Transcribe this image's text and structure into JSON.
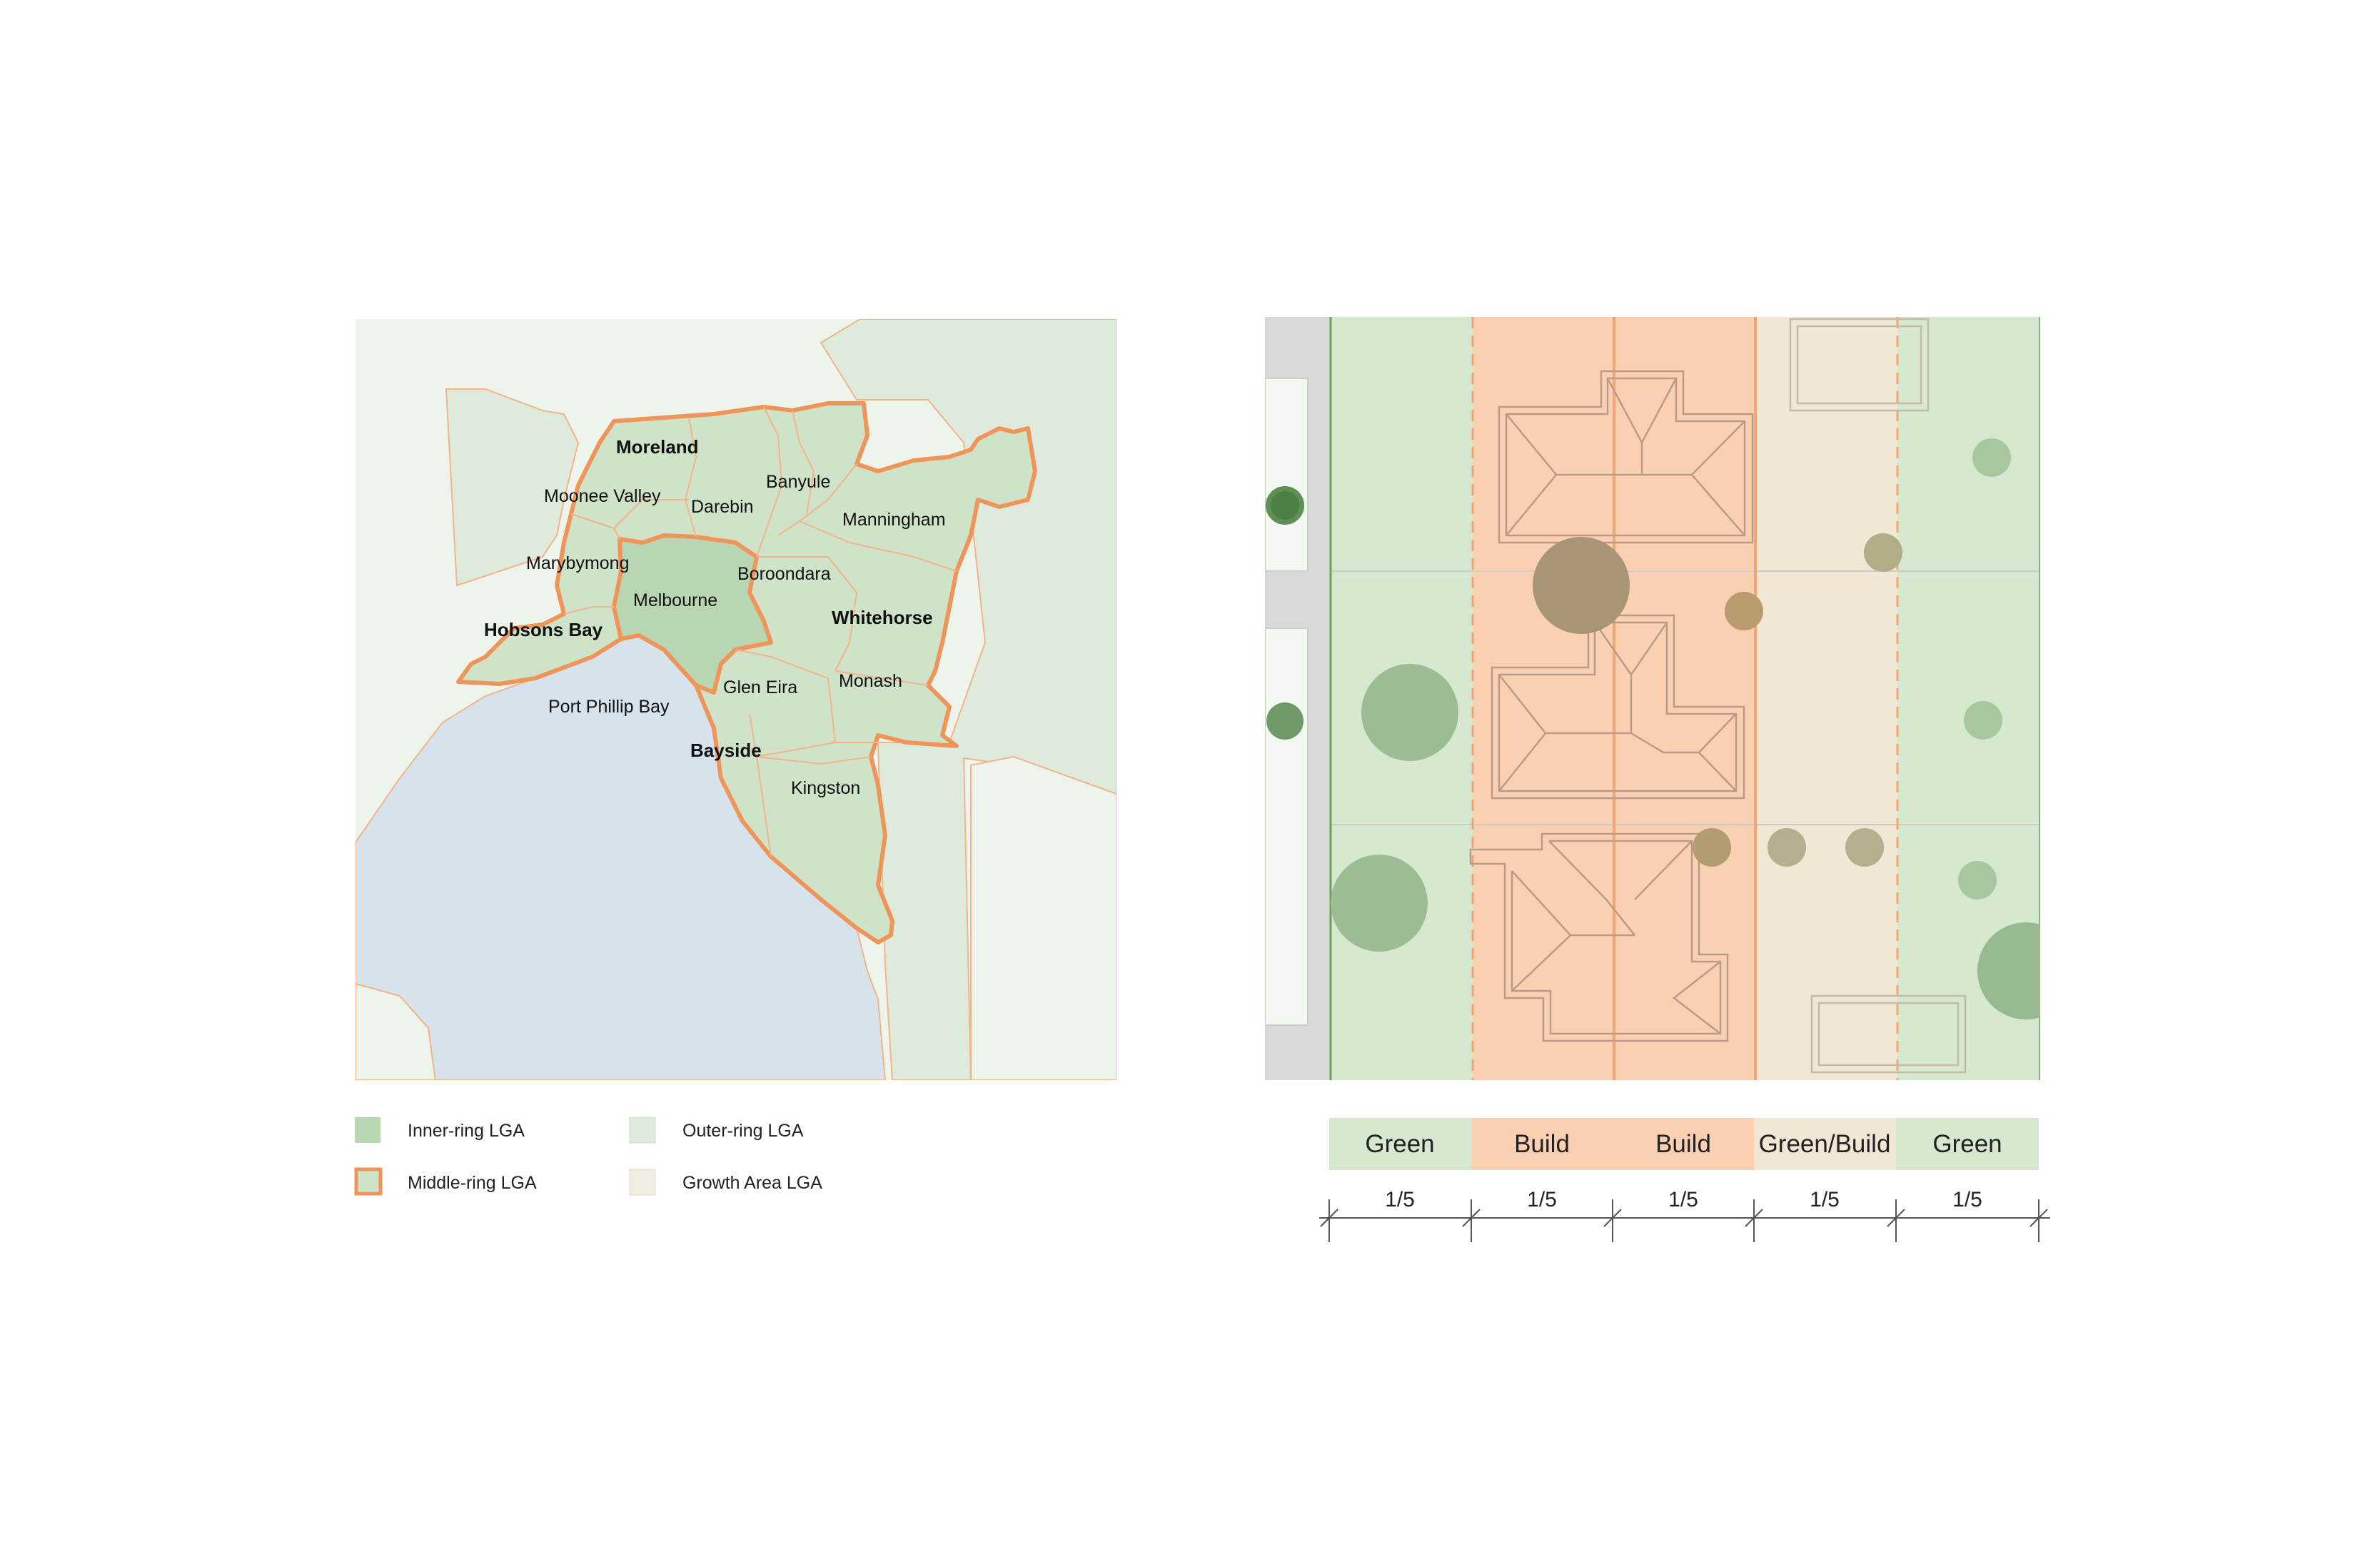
{
  "map": {
    "labels": {
      "moreland": "Moreland",
      "moonee_valley": "Moonee Valley",
      "darebin": "Darebin",
      "banyule": "Banyule",
      "manningham": "Manningham",
      "maribyrnong": "Marybymong",
      "boroondara": "Boroondara",
      "melbourne": "Melbourne",
      "whitehorse": "Whitehorse",
      "hobsons_bay": "Hobsons Bay",
      "glen_eira": "Glen Eira",
      "monash": "Monash",
      "port_phillip_bay": "Port Phillip Bay",
      "bayside": "Bayside",
      "kingston": "Kingston"
    },
    "legend": {
      "inner_ring": "Inner-ring LGA",
      "middle_ring": "Middle-ring LGA",
      "outer_ring": "Outer-ring LGA",
      "growth_area": "Growth Area LGA"
    },
    "colors": {
      "inner_ring": "#b9d6b3",
      "middle_ring_outline": "#f0955a",
      "middle_ring_fill": "#cfe3c9",
      "outer_ring": "#deebdc",
      "growth_area": "#edf4ec",
      "bay": "#d7e3ec"
    }
  },
  "plan": {
    "segments": [
      {
        "label": "Green",
        "fraction": "1/5"
      },
      {
        "label": "Build",
        "fraction": "1/5"
      },
      {
        "label": "Build",
        "fraction": "1/5"
      },
      {
        "label": "Green/Build",
        "fraction": "1/5"
      },
      {
        "label": "Green",
        "fraction": "1/5"
      }
    ],
    "colors": {
      "green_zone": "#d7e8d0",
      "build_zone": "#fbd0b2",
      "green_build_zone": "#f1e7d4",
      "tree": "#8fb487",
      "road": "#d9d9d9"
    }
  }
}
